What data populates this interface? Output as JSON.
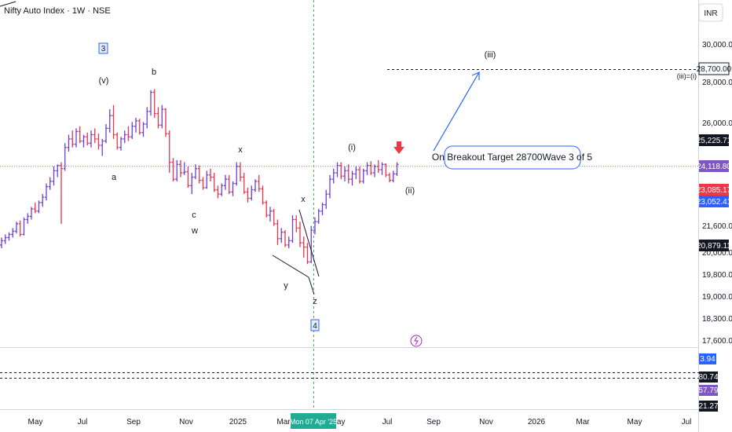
{
  "header": {
    "title": "Nifty Auto Index · 1W · NSE",
    "currency": "INR"
  },
  "colors": {
    "up": "#6b3fd3",
    "down": "#e8334a",
    "accent": "#2962ff",
    "tag_dark": "#131722",
    "tag_red": "#f23645",
    "tag_blue": "#2962ff",
    "tag_purple": "#7e57c2",
    "date_green": "#22ab94"
  },
  "chart_data": {
    "type": "ohlc",
    "price_axis": {
      "ticks": [
        "30,000.00",
        "28,000.00",
        "26,000.00",
        "21,600.00",
        "20,000.00",
        "19,800.00",
        "19,000.00",
        "18,300.00",
        "17,600.00"
      ],
      "tags": [
        {
          "label": "28,700.00",
          "style": "outline"
        },
        {
          "label": "25,225.71",
          "style": "dark"
        },
        {
          "label": "24,118.80",
          "style": "purple"
        },
        {
          "label": "23,085.17",
          "style": "red"
        },
        {
          "label": "23,052.41",
          "style": "blue"
        },
        {
          "label": "20,879.11",
          "style": "dark"
        }
      ]
    },
    "time_axis": {
      "labels": [
        "May",
        "Jul",
        "Sep",
        "Nov",
        "2025",
        "Mar",
        "May",
        "Jul",
        "Sep",
        "Nov",
        "2026",
        "Mar",
        "May",
        "Jul"
      ],
      "crosshair_date": "Mon 07 Apr '25"
    },
    "indicator_panel": {
      "tags": [
        "3.94",
        "80.74",
        "57.79",
        "21.27"
      ]
    },
    "annotations": {
      "waves": [
        "3",
        "(v)",
        "b",
        "a",
        "c",
        "w",
        "x",
        "x",
        "y",
        "z",
        "4",
        "(i)",
        "(ii)",
        "(iii)"
      ],
      "target_line_label": "(iii)=(i)",
      "callout": "On Breakout Target 28700Wave 3 of 5"
    },
    "bars": [
      {
        "o": 20300,
        "h": 20650,
        "l": 20150,
        "c": 20500
      },
      {
        "o": 20500,
        "h": 20800,
        "l": 20350,
        "c": 20650
      },
      {
        "o": 20650,
        "h": 20900,
        "l": 20500,
        "c": 20800
      },
      {
        "o": 20800,
        "h": 21100,
        "l": 20650,
        "c": 20950
      },
      {
        "o": 20950,
        "h": 21400,
        "l": 20850,
        "c": 21300
      },
      {
        "o": 21300,
        "h": 21450,
        "l": 20700,
        "c": 20800
      },
      {
        "o": 20800,
        "h": 21600,
        "l": 20750,
        "c": 21500
      },
      {
        "o": 21500,
        "h": 21800,
        "l": 21300,
        "c": 21650
      },
      {
        "o": 21650,
        "h": 22100,
        "l": 21500,
        "c": 22000
      },
      {
        "o": 22000,
        "h": 22300,
        "l": 21800,
        "c": 21900
      },
      {
        "o": 21900,
        "h": 22400,
        "l": 21800,
        "c": 22300
      },
      {
        "o": 22300,
        "h": 22700,
        "l": 22100,
        "c": 22550
      },
      {
        "o": 22550,
        "h": 23200,
        "l": 22400,
        "c": 23050
      },
      {
        "o": 23050,
        "h": 23500,
        "l": 22900,
        "c": 23300
      },
      {
        "o": 23300,
        "h": 24000,
        "l": 23100,
        "c": 23800
      },
      {
        "o": 23800,
        "h": 24100,
        "l": 23500,
        "c": 24050
      },
      {
        "o": 24050,
        "h": 24200,
        "l": 21300,
        "c": 23900
      },
      {
        "o": 23900,
        "h": 25100,
        "l": 23800,
        "c": 24900
      },
      {
        "o": 24900,
        "h": 25500,
        "l": 24700,
        "c": 25300
      },
      {
        "o": 25300,
        "h": 25700,
        "l": 24900,
        "c": 25050
      },
      {
        "o": 25050,
        "h": 25800,
        "l": 24900,
        "c": 25650
      },
      {
        "o": 25650,
        "h": 25900,
        "l": 25100,
        "c": 25200
      },
      {
        "o": 25200,
        "h": 25500,
        "l": 24900,
        "c": 25400
      },
      {
        "o": 25400,
        "h": 25600,
        "l": 25000,
        "c": 25100
      },
      {
        "o": 25100,
        "h": 25700,
        "l": 24900,
        "c": 25500
      },
      {
        "o": 25500,
        "h": 25800,
        "l": 25100,
        "c": 25300
      },
      {
        "o": 25300,
        "h": 25550,
        "l": 24800,
        "c": 25000
      },
      {
        "o": 25000,
        "h": 25300,
        "l": 24500,
        "c": 25200
      },
      {
        "o": 25200,
        "h": 26000,
        "l": 25100,
        "c": 25800
      },
      {
        "o": 25800,
        "h": 26700,
        "l": 25600,
        "c": 26400
      },
      {
        "o": 26400,
        "h": 26900,
        "l": 25300,
        "c": 25500
      },
      {
        "o": 25500,
        "h": 25600,
        "l": 24800,
        "c": 24900
      },
      {
        "o": 24900,
        "h": 25400,
        "l": 24750,
        "c": 25300
      },
      {
        "o": 25300,
        "h": 25700,
        "l": 25100,
        "c": 25500
      },
      {
        "o": 25500,
        "h": 25900,
        "l": 25200,
        "c": 25400
      },
      {
        "o": 25400,
        "h": 26100,
        "l": 25300,
        "c": 25900
      },
      {
        "o": 25900,
        "h": 26300,
        "l": 25600,
        "c": 26150
      },
      {
        "o": 26150,
        "h": 26250,
        "l": 25500,
        "c": 25600
      },
      {
        "o": 25600,
        "h": 26100,
        "l": 25400,
        "c": 26000
      },
      {
        "o": 26000,
        "h": 26800,
        "l": 25800,
        "c": 26600
      },
      {
        "o": 26600,
        "h": 27600,
        "l": 26400,
        "c": 27500
      },
      {
        "o": 27500,
        "h": 27650,
        "l": 26300,
        "c": 26500
      },
      {
        "o": 26500,
        "h": 26800,
        "l": 25800,
        "c": 25950
      },
      {
        "o": 25950,
        "h": 26900,
        "l": 25800,
        "c": 26700
      },
      {
        "o": 26700,
        "h": 26750,
        "l": 25400,
        "c": 25550
      },
      {
        "o": 25550,
        "h": 25700,
        "l": 23700,
        "c": 24200
      },
      {
        "o": 24200,
        "h": 24400,
        "l": 23300,
        "c": 23400
      },
      {
        "o": 23400,
        "h": 24300,
        "l": 23300,
        "c": 24100
      },
      {
        "o": 24100,
        "h": 24300,
        "l": 23500,
        "c": 23700
      },
      {
        "o": 23700,
        "h": 24200,
        "l": 23600,
        "c": 23750
      },
      {
        "o": 23750,
        "h": 24000,
        "l": 23000,
        "c": 23100
      },
      {
        "o": 23100,
        "h": 23700,
        "l": 22700,
        "c": 23500
      },
      {
        "o": 23500,
        "h": 24100,
        "l": 23400,
        "c": 23900
      },
      {
        "o": 23900,
        "h": 24050,
        "l": 23200,
        "c": 23350
      },
      {
        "o": 23350,
        "h": 23500,
        "l": 22900,
        "c": 23000
      },
      {
        "o": 23000,
        "h": 23800,
        "l": 22950,
        "c": 23600
      },
      {
        "o": 23600,
        "h": 23900,
        "l": 23300,
        "c": 23500
      },
      {
        "o": 23500,
        "h": 23700,
        "l": 22800,
        "c": 22900
      },
      {
        "o": 22900,
        "h": 23100,
        "l": 22500,
        "c": 22700
      },
      {
        "o": 22700,
        "h": 23200,
        "l": 22600,
        "c": 23100
      },
      {
        "o": 23100,
        "h": 23600,
        "l": 22900,
        "c": 23400
      },
      {
        "o": 23400,
        "h": 23600,
        "l": 22700,
        "c": 22800
      },
      {
        "o": 22800,
        "h": 23300,
        "l": 22600,
        "c": 23200
      },
      {
        "o": 23200,
        "h": 24200,
        "l": 23100,
        "c": 24000
      },
      {
        "o": 24000,
        "h": 24200,
        "l": 23300,
        "c": 23500
      },
      {
        "o": 23500,
        "h": 23700,
        "l": 22700,
        "c": 22800
      },
      {
        "o": 22800,
        "h": 23000,
        "l": 22300,
        "c": 22500
      },
      {
        "o": 22500,
        "h": 23100,
        "l": 22400,
        "c": 22900
      },
      {
        "o": 22900,
        "h": 23400,
        "l": 22800,
        "c": 23300
      },
      {
        "o": 23300,
        "h": 23600,
        "l": 22800,
        "c": 22950
      },
      {
        "o": 22950,
        "h": 23100,
        "l": 22200,
        "c": 22300
      },
      {
        "o": 22300,
        "h": 22400,
        "l": 21600,
        "c": 21700
      },
      {
        "o": 21700,
        "h": 22100,
        "l": 21400,
        "c": 21900
      },
      {
        "o": 21900,
        "h": 22000,
        "l": 21200,
        "c": 21300
      },
      {
        "o": 21300,
        "h": 21500,
        "l": 20300,
        "c": 20600
      },
      {
        "o": 20600,
        "h": 21100,
        "l": 20400,
        "c": 20900
      },
      {
        "o": 20900,
        "h": 21000,
        "l": 20200,
        "c": 20300
      },
      {
        "o": 20300,
        "h": 20700,
        "l": 20150,
        "c": 20500
      },
      {
        "o": 20500,
        "h": 21700,
        "l": 20400,
        "c": 21500
      },
      {
        "o": 21500,
        "h": 21700,
        "l": 20900,
        "c": 21100
      },
      {
        "o": 21100,
        "h": 21400,
        "l": 20200,
        "c": 20400
      },
      {
        "o": 20400,
        "h": 20700,
        "l": 19700,
        "c": 20200
      },
      {
        "o": 20200,
        "h": 20400,
        "l": 19400,
        "c": 19500
      },
      {
        "o": 19500,
        "h": 21200,
        "l": 19450,
        "c": 21000
      },
      {
        "o": 21000,
        "h": 21600,
        "l": 20800,
        "c": 21400
      },
      {
        "o": 21400,
        "h": 22000,
        "l": 21300,
        "c": 21900
      },
      {
        "o": 21900,
        "h": 22300,
        "l": 21700,
        "c": 22200
      },
      {
        "o": 22200,
        "h": 22900,
        "l": 22000,
        "c": 22700
      },
      {
        "o": 22700,
        "h": 23600,
        "l": 22500,
        "c": 23400
      },
      {
        "o": 23400,
        "h": 23900,
        "l": 23200,
        "c": 23700
      },
      {
        "o": 23700,
        "h": 24200,
        "l": 23500,
        "c": 24050
      },
      {
        "o": 24050,
        "h": 24200,
        "l": 23400,
        "c": 23550
      },
      {
        "o": 23550,
        "h": 24000,
        "l": 23300,
        "c": 23800
      },
      {
        "o": 23800,
        "h": 24100,
        "l": 23200,
        "c": 23400
      },
      {
        "o": 23400,
        "h": 23800,
        "l": 23100,
        "c": 23650
      },
      {
        "o": 23650,
        "h": 24000,
        "l": 23400,
        "c": 23850
      },
      {
        "o": 23850,
        "h": 24000,
        "l": 23200,
        "c": 23300
      },
      {
        "o": 23300,
        "h": 23900,
        "l": 23200,
        "c": 23800
      },
      {
        "o": 23800,
        "h": 24200,
        "l": 23600,
        "c": 24050
      },
      {
        "o": 24050,
        "h": 24250,
        "l": 23600,
        "c": 23700
      },
      {
        "o": 23700,
        "h": 24100,
        "l": 23500,
        "c": 24000
      },
      {
        "o": 24000,
        "h": 24300,
        "l": 23700,
        "c": 23850
      },
      {
        "o": 23850,
        "h": 24200,
        "l": 23600,
        "c": 24100
      },
      {
        "o": 24100,
        "h": 24150,
        "l": 23500,
        "c": 23600
      },
      {
        "o": 23600,
        "h": 23700,
        "l": 23250,
        "c": 23350
      },
      {
        "o": 23350,
        "h": 23800,
        "l": 23250,
        "c": 23650
      },
      {
        "o": 23650,
        "h": 24200,
        "l": 23550,
        "c": 24100
      }
    ]
  }
}
